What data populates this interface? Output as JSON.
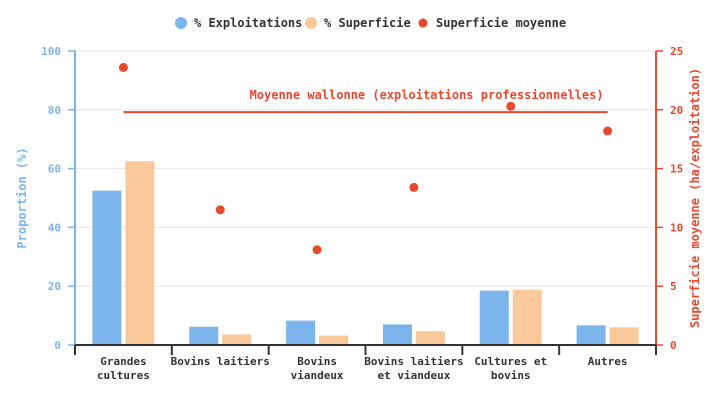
{
  "chart_data": {
    "type": "bar",
    "categories": [
      [
        "Grandes",
        "cultures"
      ],
      [
        "Bovins laitiers"
      ],
      [
        "Bovins",
        "viandeux"
      ],
      [
        "Bovins laitiers",
        "et viandeux"
      ],
      [
        "Cultures et",
        "bovins"
      ],
      [
        "Autres"
      ]
    ],
    "series": [
      {
        "name": "% Exploitations",
        "axis": "left",
        "kind": "bar",
        "color": "#7cb5ec",
        "values": [
          52.5,
          6.2,
          8.3,
          7.0,
          18.5,
          6.7
        ]
      },
      {
        "name": "% Superficie",
        "axis": "left",
        "kind": "bar",
        "color": "#f9c89b",
        "values": [
          62.5,
          3.6,
          3.2,
          4.7,
          18.8,
          6.0
        ]
      },
      {
        "name": "Superficie moyenne",
        "axis": "right",
        "kind": "scatter",
        "color": "#e8492f",
        "values": [
          23.6,
          11.5,
          8.1,
          13.4,
          20.3,
          18.2
        ]
      }
    ],
    "y_left": {
      "label": "Proportion (%)",
      "lim": [
        0,
        100
      ],
      "ticks": [
        0,
        20,
        40,
        60,
        80,
        100
      ],
      "color": "#7cb5ec"
    },
    "y_right": {
      "label": "Superficie moyenne (ha/exploitation)",
      "lim": [
        0,
        25
      ],
      "ticks": [
        0,
        5,
        10,
        15,
        20,
        25
      ],
      "color": "#e8492f"
    },
    "reference_line": {
      "label": "Moyenne wallonne (exploitations professionnelles)",
      "value": 19.8,
      "axis": "right",
      "color": "#e8492f"
    },
    "grid": true,
    "legend": "top-center"
  }
}
